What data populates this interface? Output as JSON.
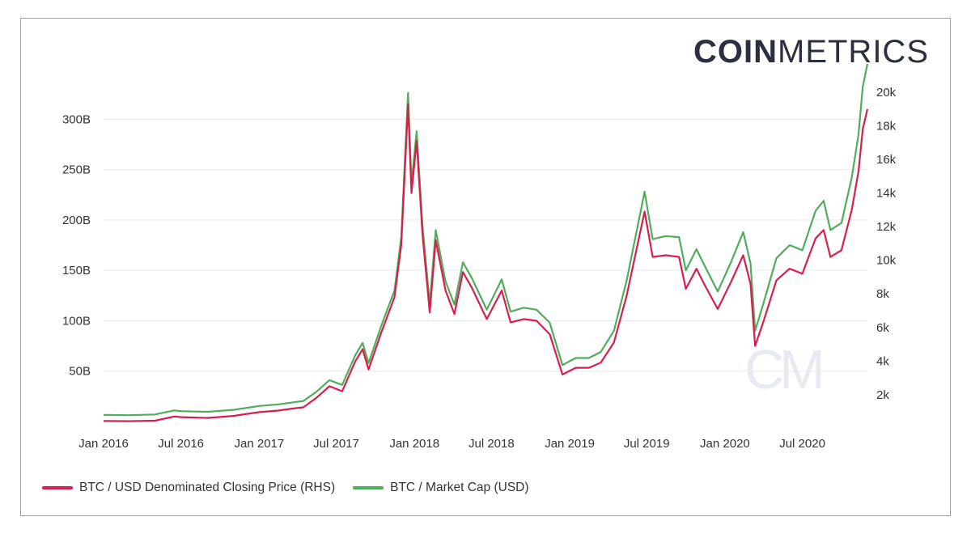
{
  "brand": {
    "bold": "COIN",
    "light": "METRICS",
    "watermark": "CM"
  },
  "colors": {
    "price": "#d81e4e",
    "marketcap": "#4fad5b",
    "grid": "#e9e9e9",
    "text": "#333333"
  },
  "chart_data": {
    "type": "line",
    "title": "",
    "x_ticks": [
      "Jan 2016",
      "Jul 2016",
      "Jan 2017",
      "Jul 2017",
      "Jan 2018",
      "Jul 2018",
      "Jan 2019",
      "Jul 2019",
      "Jan 2020",
      "Jul 2020"
    ],
    "left_axis": {
      "ticks": [
        "50B",
        "100B",
        "150B",
        "200B",
        "250B",
        "300B"
      ],
      "values": [
        50,
        100,
        150,
        200,
        250,
        300
      ],
      "range": [
        0,
        330
      ],
      "unit": "USD billions"
    },
    "right_axis": {
      "ticks": [
        "2k",
        "4k",
        "6k",
        "8k",
        "10k",
        "12k",
        "14k",
        "16k",
        "18k",
        "20k"
      ],
      "values": [
        2000,
        4000,
        6000,
        8000,
        10000,
        12000,
        14000,
        16000,
        18000,
        20000
      ],
      "range": [
        400,
        20200
      ]
    },
    "x_range": [
      "2016-01-01",
      "2020-12-01"
    ],
    "grid": true,
    "legend_position": "bottom-left",
    "series": [
      {
        "name": "BTC / USD Denominated Closing Price (RHS)",
        "axis": "right",
        "color": "#d81e4e",
        "points": [
          [
            "2016-01-01",
            430
          ],
          [
            "2016-03-01",
            420
          ],
          [
            "2016-05-01",
            450
          ],
          [
            "2016-06-15",
            700
          ],
          [
            "2016-07-01",
            660
          ],
          [
            "2016-09-01",
            610
          ],
          [
            "2016-11-01",
            730
          ],
          [
            "2017-01-01",
            960
          ],
          [
            "2017-02-15",
            1050
          ],
          [
            "2017-03-15",
            1150
          ],
          [
            "2017-04-15",
            1250
          ],
          [
            "2017-05-15",
            1800
          ],
          [
            "2017-06-15",
            2500
          ],
          [
            "2017-07-15",
            2200
          ],
          [
            "2017-08-15",
            4000
          ],
          [
            "2017-09-01",
            4700
          ],
          [
            "2017-09-15",
            3500
          ],
          [
            "2017-10-15",
            5700
          ],
          [
            "2017-11-15",
            7800
          ],
          [
            "2017-12-01",
            10900
          ],
          [
            "2017-12-17",
            19300
          ],
          [
            "2017-12-25",
            14000
          ],
          [
            "2018-01-06",
            17100
          ],
          [
            "2018-01-20",
            11500
          ],
          [
            "2018-02-06",
            6900
          ],
          [
            "2018-02-20",
            11200
          ],
          [
            "2018-03-15",
            8200
          ],
          [
            "2018-04-05",
            6800
          ],
          [
            "2018-04-25",
            9300
          ],
          [
            "2018-05-15",
            8400
          ],
          [
            "2018-06-20",
            6500
          ],
          [
            "2018-07-25",
            8200
          ],
          [
            "2018-08-15",
            6300
          ],
          [
            "2018-09-15",
            6500
          ],
          [
            "2018-10-15",
            6400
          ],
          [
            "2018-11-15",
            5600
          ],
          [
            "2018-12-15",
            3200
          ],
          [
            "2019-01-15",
            3600
          ],
          [
            "2019-02-15",
            3600
          ],
          [
            "2019-03-15",
            3900
          ],
          [
            "2019-04-15",
            5100
          ],
          [
            "2019-05-15",
            7900
          ],
          [
            "2019-06-26",
            12900
          ],
          [
            "2019-07-15",
            10200
          ],
          [
            "2019-08-15",
            10300
          ],
          [
            "2019-09-15",
            10200
          ],
          [
            "2019-10-01",
            8300
          ],
          [
            "2019-10-26",
            9500
          ],
          [
            "2019-11-15",
            8500
          ],
          [
            "2019-12-15",
            7100
          ],
          [
            "2020-01-15",
            8700
          ],
          [
            "2020-02-13",
            10300
          ],
          [
            "2020-03-01",
            8600
          ],
          [
            "2020-03-12",
            4900
          ],
          [
            "2020-04-01",
            6400
          ],
          [
            "2020-05-01",
            8800
          ],
          [
            "2020-06-01",
            9500
          ],
          [
            "2020-07-01",
            9200
          ],
          [
            "2020-08-01",
            11300
          ],
          [
            "2020-08-20",
            11800
          ],
          [
            "2020-09-05",
            10200
          ],
          [
            "2020-10-01",
            10600
          ],
          [
            "2020-10-25",
            13000
          ],
          [
            "2020-11-10",
            15300
          ],
          [
            "2020-11-20",
            17800
          ],
          [
            "2020-12-01",
            19000
          ]
        ]
      },
      {
        "name": "BTC / Market Cap (USD)",
        "axis": "left",
        "color": "#4fad5b",
        "points": [
          [
            "2016-01-01",
            6.5
          ],
          [
            "2016-03-01",
            6.3
          ],
          [
            "2016-05-01",
            7.0
          ],
          [
            "2016-06-15",
            11.0
          ],
          [
            "2016-07-01",
            10.3
          ],
          [
            "2016-09-01",
            9.6
          ],
          [
            "2016-11-01",
            11.6
          ],
          [
            "2017-01-01",
            15.4
          ],
          [
            "2017-02-15",
            17.0
          ],
          [
            "2017-03-15",
            18.6
          ],
          [
            "2017-04-15",
            20.4
          ],
          [
            "2017-05-15",
            29.4
          ],
          [
            "2017-06-15",
            41.0
          ],
          [
            "2017-07-15",
            36.3
          ],
          [
            "2017-08-15",
            66.0
          ],
          [
            "2017-09-01",
            78.0
          ],
          [
            "2017-09-15",
            58.0
          ],
          [
            "2017-10-15",
            95.0
          ],
          [
            "2017-11-15",
            130.0
          ],
          [
            "2017-12-01",
            183.0
          ],
          [
            "2017-12-17",
            326.0
          ],
          [
            "2017-12-25",
            236.0
          ],
          [
            "2018-01-06",
            288.0
          ],
          [
            "2018-01-20",
            194.0
          ],
          [
            "2018-02-06",
            117.0
          ],
          [
            "2018-02-20",
            190.0
          ],
          [
            "2018-03-15",
            139.0
          ],
          [
            "2018-04-05",
            116.0
          ],
          [
            "2018-04-25",
            158.0
          ],
          [
            "2018-05-15",
            143.0
          ],
          [
            "2018-06-20",
            111.0
          ],
          [
            "2018-07-25",
            141.0
          ],
          [
            "2018-08-15",
            109.0
          ],
          [
            "2018-09-15",
            113.0
          ],
          [
            "2018-10-15",
            111.0
          ],
          [
            "2018-11-15",
            98.0
          ],
          [
            "2018-12-15",
            56.0
          ],
          [
            "2019-01-15",
            63.0
          ],
          [
            "2019-02-15",
            63.0
          ],
          [
            "2019-03-15",
            69.0
          ],
          [
            "2019-04-15",
            90.0
          ],
          [
            "2019-05-15",
            140.0
          ],
          [
            "2019-06-26",
            228.0
          ],
          [
            "2019-07-15",
            181.0
          ],
          [
            "2019-08-15",
            184.0
          ],
          [
            "2019-09-15",
            183.0
          ],
          [
            "2019-10-01",
            150.0
          ],
          [
            "2019-10-26",
            171.0
          ],
          [
            "2019-11-15",
            154.0
          ],
          [
            "2019-12-15",
            129.0
          ],
          [
            "2020-01-15",
            158.0
          ],
          [
            "2020-02-13",
            188.0
          ],
          [
            "2020-03-01",
            157.0
          ],
          [
            "2020-03-12",
            90.0
          ],
          [
            "2020-04-01",
            118.0
          ],
          [
            "2020-05-01",
            162.0
          ],
          [
            "2020-06-01",
            175.0
          ],
          [
            "2020-07-01",
            170.0
          ],
          [
            "2020-08-01",
            209.0
          ],
          [
            "2020-08-20",
            219.0
          ],
          [
            "2020-09-05",
            190.0
          ],
          [
            "2020-10-01",
            197.0
          ],
          [
            "2020-10-25",
            242.0
          ],
          [
            "2020-11-10",
            285.0
          ],
          [
            "2020-11-20",
            332.0
          ],
          [
            "2020-12-01",
            355.0
          ]
        ]
      }
    ]
  }
}
